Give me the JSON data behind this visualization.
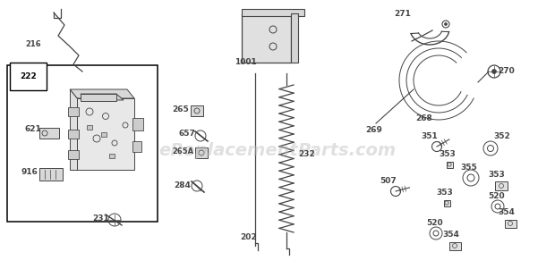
{
  "background_color": "#ffffff",
  "watermark": "eReplacementParts.com",
  "watermark_color": "#bbbbbb",
  "watermark_alpha": 0.45,
  "border_color": "#000000",
  "part_color": "#444444",
  "figsize": [
    6.2,
    3.01
  ],
  "dpi": 100
}
